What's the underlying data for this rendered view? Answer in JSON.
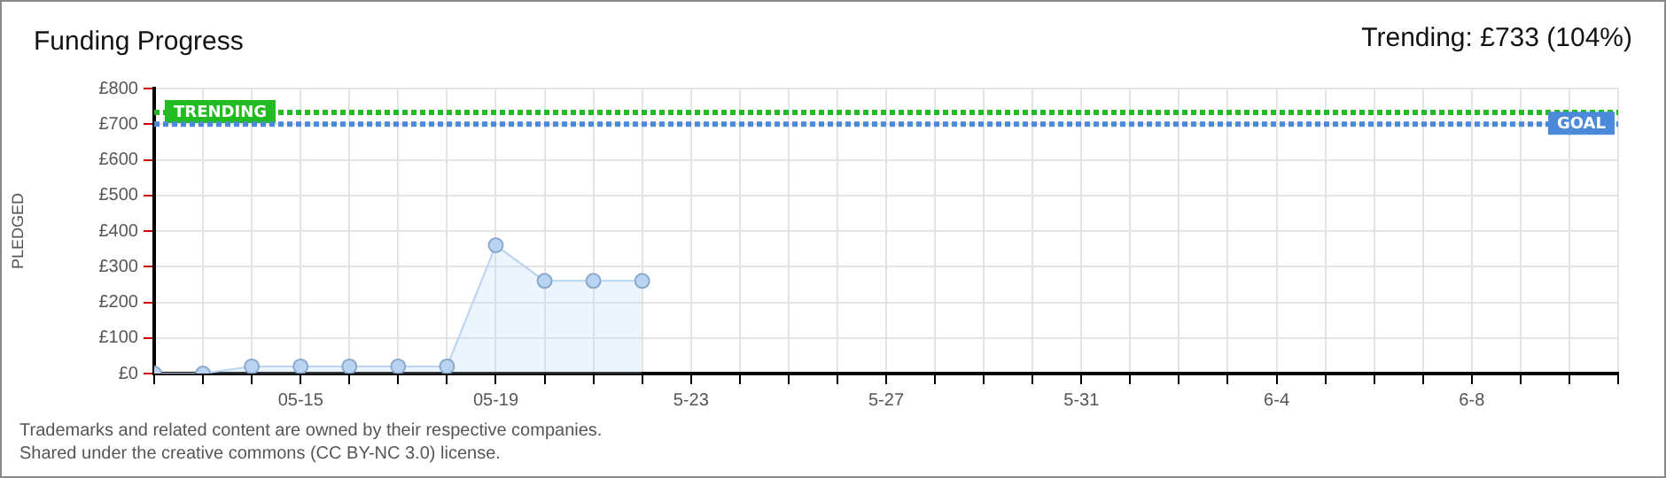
{
  "chart_data": {
    "type": "area",
    "title": "Funding Progress",
    "ylabel": "PLEDGED",
    "annotations": [
      "Trending:  £733 (104%)",
      "Trademarks and related content are owned by their respective companies.",
      "Shared under the creative commons (CC BY-NC 3.0) license."
    ],
    "x": [
      "--05-12",
      "--05-13",
      "--05-14",
      "--05-15",
      "--05-16",
      "--05-17",
      "--05-18",
      "--05-19",
      "--05-20",
      "--05-21",
      "--05-22"
    ],
    "series": [
      {
        "color": "#b8d4f2",
        "values": [
          0,
          0,
          20,
          20,
          20,
          20,
          20,
          360,
          260,
          260,
          260
        ]
      }
    ],
    "marker": "circle",
    "xlim": [
      "--05-12",
      "--06-11"
    ],
    "xticks": [
      {
        "value": "--05-12",
        "label": null
      },
      {
        "value": "--05-13",
        "label": null
      },
      {
        "value": "--05-14",
        "label": null
      },
      {
        "value": "--05-15",
        "label": "05-15"
      },
      {
        "value": "--05-16",
        "label": null
      },
      {
        "value": "--05-17",
        "label": null
      },
      {
        "value": "--05-18",
        "label": null
      },
      {
        "value": "--05-19",
        "label": "05-19"
      },
      {
        "value": "--05-20",
        "label": null
      },
      {
        "value": "--05-21",
        "label": null
      },
      {
        "value": "--05-22",
        "label": null
      },
      {
        "value": "--05-23",
        "label": "5-23"
      },
      {
        "value": "--05-24",
        "label": null
      },
      {
        "value": "--05-25",
        "label": null
      },
      {
        "value": "--05-26",
        "label": null
      },
      {
        "value": "--05-27",
        "label": "5-27"
      },
      {
        "value": "--05-28",
        "label": null
      },
      {
        "value": "--05-29",
        "label": null
      },
      {
        "value": "--05-30",
        "label": null
      },
      {
        "value": "--05-31",
        "label": "5-31"
      },
      {
        "value": "--06-01",
        "label": null
      },
      {
        "value": "--06-02",
        "label": null
      },
      {
        "value": "--06-03",
        "label": null
      },
      {
        "value": "--06-04",
        "label": "6-4"
      },
      {
        "value": "--06-05",
        "label": null
      },
      {
        "value": "--06-06",
        "label": null
      },
      {
        "value": "--06-07",
        "label": null
      },
      {
        "value": "--06-08",
        "label": "6-8"
      },
      {
        "value": "--06-09",
        "label": null
      },
      {
        "value": "--06-10",
        "label": null
      },
      {
        "value": "--06-11",
        "label": null
      }
    ],
    "ylim": [
      0,
      800
    ],
    "yticks": [
      {
        "value": 0,
        "label": "£0"
      },
      {
        "value": 100,
        "label": "£100"
      },
      {
        "value": 200,
        "label": "£200"
      },
      {
        "value": 300,
        "label": "£300"
      },
      {
        "value": 400,
        "label": "£400"
      },
      {
        "value": 500,
        "label": "£500"
      },
      {
        "value": 600,
        "label": "£600"
      },
      {
        "value": 700,
        "label": "£700"
      },
      {
        "value": 800,
        "label": "£800"
      }
    ],
    "grid": true,
    "legend": false,
    "ref_lines": [
      {
        "axis": "y",
        "value": 733,
        "label": "TRENDING",
        "color": "#22bb22",
        "line_style": "dotted"
      },
      {
        "axis": "y",
        "value": 700,
        "label": "GOAL",
        "color": "#4a8ad8",
        "line_style": "dotted"
      }
    ]
  }
}
